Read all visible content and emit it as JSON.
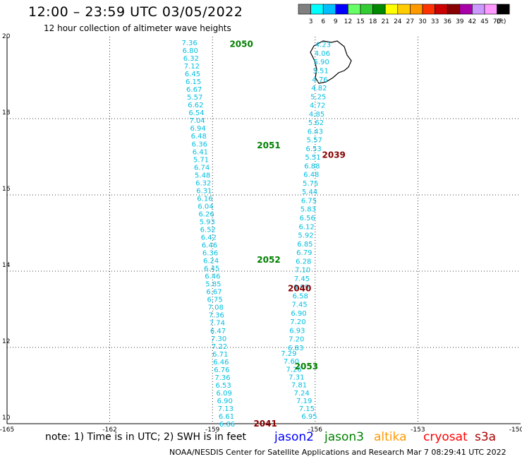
{
  "header": {
    "title": "12:00 – 23:59 UTC 03/05/2022",
    "subtitle": "12 hour collection of altimeter wave heights"
  },
  "footer": {
    "note": "note: 1) Time is in UTC; 2) SWH is in feet",
    "credit": "NOAA/NESDIS Center for Satellite Applications and Research   Mar  7 08:29:41 UTC 2022",
    "satellites": [
      {
        "name": "jason2",
        "color": "#0000ff"
      },
      {
        "name": "jason3",
        "color": "#008000"
      },
      {
        "name": "altika",
        "color": "#ff9900"
      },
      {
        "name": "cryosat",
        "color": "#ff0000"
      },
      {
        "name": "s3a",
        "color": "#aa0000"
      }
    ]
  },
  "legend": {
    "unit": "(ft)",
    "labels": [
      "3",
      "6",
      "9",
      "12",
      "15",
      "18",
      "21",
      "24",
      "27",
      "30",
      "33",
      "36",
      "39",
      "42",
      "45",
      "70"
    ],
    "colors": [
      "#808080",
      "#00ffff",
      "#00bfff",
      "#0000ff",
      "#66ff66",
      "#33cc33",
      "#008800",
      "#ffff00",
      "#ffcc00",
      "#ff9900",
      "#ff3300",
      "#cc0000",
      "#880000",
      "#aa00aa",
      "#cc99ff",
      "#ff99ff",
      "#000000"
    ]
  },
  "map": {
    "lon_range": [
      -165,
      -150
    ],
    "lat_range": [
      10,
      20
    ],
    "lon_ticks": [
      "-165",
      "-162",
      "-159",
      "-156",
      "-153",
      "-150"
    ],
    "lat_ticks": [
      "20",
      "18",
      "16",
      "14",
      "12",
      "10"
    ],
    "value_color": "#00bfe0",
    "passes": [
      {
        "label": "2050",
        "color": "#008000",
        "lon": -158.5,
        "lat": 19.95
      },
      {
        "label": "2051",
        "color": "#008000",
        "lon": -157.7,
        "lat": 17.3
      },
      {
        "label": "2039",
        "color": "#880000",
        "lon": -155.8,
        "lat": 17.05
      },
      {
        "label": "2052",
        "color": "#008000",
        "lon": -157.7,
        "lat": 14.3
      },
      {
        "label": "2040",
        "color": "#880000",
        "lon": -156.8,
        "lat": 13.55
      },
      {
        "label": "2053",
        "color": "#008000",
        "lon": -156.6,
        "lat": 11.5
      },
      {
        "label": "2041",
        "color": "#880000",
        "lon": -157.8,
        "lat": 10.0
      }
    ],
    "track_west": {
      "start": [
        -159.9,
        20.0
      ],
      "end": [
        -158.8,
        10.0
      ],
      "values": [
        "7.36",
        "6.80",
        "6.32",
        "7.12",
        "6.45",
        "6.15",
        "6.67",
        "5.57",
        "6.62",
        "6.54",
        "7.04",
        "6.94",
        "6.48",
        "6.36",
        "6.41",
        "5.71",
        "6.74",
        "5.48",
        "6.32",
        "6.31",
        "6.16",
        "6.04",
        "6.26",
        "5.93",
        "6.52",
        "6.42",
        "6.46",
        "6.36",
        "6.24",
        "6.45",
        "6.46",
        "5.85",
        "6.67",
        "6.75",
        "7.08",
        "7.36",
        "7.74",
        "6.47",
        "7.30",
        "7.22",
        "6.71",
        "6.46",
        "6.76",
        "7.36",
        "6.53",
        "6.09",
        "6.90",
        "7.13",
        "6.61",
        "6.86"
      ]
    },
    "track_east": {
      "start": [
        -156.0,
        19.95
      ],
      "end": [
        -156.8,
        12.0
      ],
      "values": [
        "4.23",
        "4.06",
        "5.90",
        "5.51",
        "4.76",
        "4.82",
        "5.25",
        "4.72",
        "4.85",
        "5.62",
        "6.43",
        "5.57",
        "6.53",
        "5.51",
        "6.88",
        "6.48",
        "5.75",
        "5.44",
        "6.75",
        "5.83",
        "6.56",
        "6.12",
        "5.92",
        "6.85",
        "6.79",
        "6.28",
        "7.10",
        "7.45",
        "6.99",
        "6.58",
        "7.45",
        "6.90",
        "7.20",
        "6.93",
        "7.20",
        "6.83"
      ]
    },
    "track_east_lower": {
      "start": [
        -157.0,
        11.85
      ],
      "end": [
        -156.4,
        10.2
      ],
      "values": [
        "7.29",
        "7.60",
        "7.26",
        "7.31",
        "7.81",
        "7.24",
        "7.19",
        "7.15",
        "6.95"
      ]
    }
  }
}
